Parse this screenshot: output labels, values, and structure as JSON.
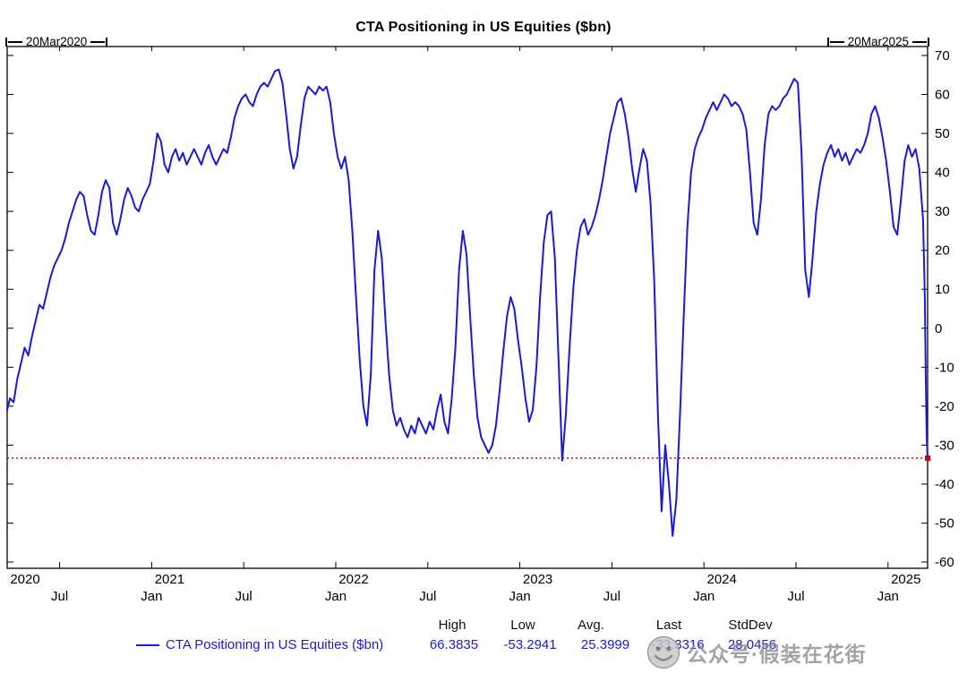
{
  "title": "CTA Positioning in US Equities ($bn)",
  "range": {
    "start": "20Mar2020",
    "end": "20Mar2025"
  },
  "legend_label": "CTA Positioning in US Equities ($bn)",
  "stats": {
    "high_label": "High",
    "low_label": "Low",
    "avg_label": "Avg.",
    "last_label": "Last",
    "stddev_label": "StdDev",
    "high": "66.3835",
    "low": "-53.2941",
    "avg": "25.3999",
    "last": "-33.3316",
    "stddev": "28.0456"
  },
  "watermark": {
    "text": "公众号·假装在花街"
  },
  "colors": {
    "series": "#1b1bd3",
    "last_line": "#cc0000",
    "value_text": "#1b1bd3",
    "axis_text": "#000000",
    "watermark": "#8f8f8f"
  },
  "chart_data": {
    "type": "line",
    "title": "CTA Positioning in US Equities ($bn)",
    "xlabel": "",
    "ylabel": "$bn",
    "grid": false,
    "legend_position": "bottom",
    "x_range": [
      2020.215,
      2025.215
    ],
    "ylim": [
      -60,
      70
    ],
    "y_ticks": [
      70,
      60,
      50,
      40,
      30,
      20,
      10,
      0,
      -10,
      -20,
      -30,
      -40,
      -50,
      -60
    ],
    "x_year_labels": [
      {
        "label": "2020",
        "year": 2020.215
      },
      {
        "label": "2021",
        "year": 2021.0
      },
      {
        "label": "2022",
        "year": 2022.0
      },
      {
        "label": "2023",
        "year": 2023.0
      },
      {
        "label": "2024",
        "year": 2024.0
      },
      {
        "label": "2025",
        "year": 2025.0
      }
    ],
    "x_minor_labels": [
      {
        "label": "Jul",
        "year": 2020.5
      },
      {
        "label": "Jan",
        "year": 2021.0
      },
      {
        "label": "Jul",
        "year": 2021.5
      },
      {
        "label": "Jan",
        "year": 2022.0
      },
      {
        "label": "Jul",
        "year": 2022.5
      },
      {
        "label": "Jan",
        "year": 2023.0
      },
      {
        "label": "Jul",
        "year": 2023.5
      },
      {
        "label": "Jan",
        "year": 2024.0
      },
      {
        "label": "Jul",
        "year": 2024.5
      },
      {
        "label": "Jan",
        "year": 2025.0
      }
    ],
    "last_line_value": -33.3316,
    "stats": {
      "high": 66.3835,
      "low": -53.2941,
      "avg": 25.3999,
      "last": -33.3316,
      "stddev": 28.0456
    },
    "series": [
      {
        "name": "CTA Positioning in US Equities ($bn)",
        "color": "#1b1bd3",
        "points": [
          [
            2020.215,
            -21
          ],
          [
            2020.23,
            -18
          ],
          [
            2020.25,
            -19
          ],
          [
            2020.27,
            -13
          ],
          [
            2020.29,
            -9
          ],
          [
            2020.31,
            -5
          ],
          [
            2020.33,
            -7
          ],
          [
            2020.35,
            -2
          ],
          [
            2020.37,
            2
          ],
          [
            2020.39,
            6
          ],
          [
            2020.41,
            5
          ],
          [
            2020.43,
            9
          ],
          [
            2020.45,
            13
          ],
          [
            2020.47,
            16
          ],
          [
            2020.49,
            18
          ],
          [
            2020.51,
            20
          ],
          [
            2020.53,
            23
          ],
          [
            2020.55,
            27
          ],
          [
            2020.57,
            30
          ],
          [
            2020.59,
            33
          ],
          [
            2020.61,
            35
          ],
          [
            2020.63,
            34
          ],
          [
            2020.65,
            29
          ],
          [
            2020.67,
            25
          ],
          [
            2020.69,
            24
          ],
          [
            2020.71,
            29
          ],
          [
            2020.73,
            35
          ],
          [
            2020.75,
            38
          ],
          [
            2020.77,
            36
          ],
          [
            2020.79,
            27
          ],
          [
            2020.81,
            24
          ],
          [
            2020.83,
            28
          ],
          [
            2020.85,
            33
          ],
          [
            2020.87,
            36
          ],
          [
            2020.89,
            34
          ],
          [
            2020.91,
            31
          ],
          [
            2020.93,
            30
          ],
          [
            2020.95,
            33
          ],
          [
            2020.97,
            35
          ],
          [
            2020.99,
            37
          ],
          [
            2021.01,
            43
          ],
          [
            2021.03,
            50
          ],
          [
            2021.05,
            48
          ],
          [
            2021.07,
            42
          ],
          [
            2021.09,
            40
          ],
          [
            2021.11,
            44
          ],
          [
            2021.13,
            46
          ],
          [
            2021.15,
            43
          ],
          [
            2021.17,
            45
          ],
          [
            2021.19,
            42
          ],
          [
            2021.21,
            44
          ],
          [
            2021.23,
            46
          ],
          [
            2021.25,
            44
          ],
          [
            2021.27,
            42
          ],
          [
            2021.29,
            45
          ],
          [
            2021.31,
            47
          ],
          [
            2021.33,
            44
          ],
          [
            2021.35,
            42
          ],
          [
            2021.37,
            44
          ],
          [
            2021.39,
            46
          ],
          [
            2021.41,
            45
          ],
          [
            2021.43,
            49
          ],
          [
            2021.45,
            54
          ],
          [
            2021.47,
            57
          ],
          [
            2021.49,
            59
          ],
          [
            2021.51,
            60
          ],
          [
            2021.53,
            58
          ],
          [
            2021.55,
            57
          ],
          [
            2021.57,
            60
          ],
          [
            2021.59,
            62
          ],
          [
            2021.61,
            63
          ],
          [
            2021.63,
            62
          ],
          [
            2021.65,
            64
          ],
          [
            2021.67,
            66
          ],
          [
            2021.69,
            66.4
          ],
          [
            2021.71,
            63
          ],
          [
            2021.73,
            55
          ],
          [
            2021.75,
            46
          ],
          [
            2021.77,
            41
          ],
          [
            2021.79,
            44
          ],
          [
            2021.81,
            52
          ],
          [
            2021.83,
            59
          ],
          [
            2021.85,
            62
          ],
          [
            2021.87,
            61
          ],
          [
            2021.89,
            60
          ],
          [
            2021.91,
            62
          ],
          [
            2021.93,
            61
          ],
          [
            2021.95,
            62
          ],
          [
            2021.97,
            58
          ],
          [
            2021.99,
            50
          ],
          [
            2022.01,
            44
          ],
          [
            2022.03,
            41
          ],
          [
            2022.05,
            44
          ],
          [
            2022.07,
            38
          ],
          [
            2022.09,
            25
          ],
          [
            2022.11,
            8
          ],
          [
            2022.13,
            -8
          ],
          [
            2022.15,
            -20
          ],
          [
            2022.17,
            -25
          ],
          [
            2022.19,
            -12
          ],
          [
            2022.21,
            15
          ],
          [
            2022.23,
            25
          ],
          [
            2022.25,
            18
          ],
          [
            2022.27,
            2
          ],
          [
            2022.29,
            -12
          ],
          [
            2022.31,
            -21
          ],
          [
            2022.33,
            -25
          ],
          [
            2022.35,
            -23
          ],
          [
            2022.37,
            -26
          ],
          [
            2022.39,
            -28
          ],
          [
            2022.41,
            -25
          ],
          [
            2022.43,
            -27
          ],
          [
            2022.45,
            -23
          ],
          [
            2022.47,
            -25
          ],
          [
            2022.49,
            -27
          ],
          [
            2022.51,
            -24
          ],
          [
            2022.53,
            -26
          ],
          [
            2022.55,
            -21
          ],
          [
            2022.57,
            -17
          ],
          [
            2022.59,
            -24
          ],
          [
            2022.61,
            -27
          ],
          [
            2022.63,
            -18
          ],
          [
            2022.65,
            -5
          ],
          [
            2022.67,
            15
          ],
          [
            2022.69,
            25
          ],
          [
            2022.71,
            19
          ],
          [
            2022.73,
            3
          ],
          [
            2022.75,
            -12
          ],
          [
            2022.77,
            -23
          ],
          [
            2022.79,
            -28
          ],
          [
            2022.81,
            -30
          ],
          [
            2022.83,
            -32
          ],
          [
            2022.85,
            -30
          ],
          [
            2022.87,
            -25
          ],
          [
            2022.89,
            -16
          ],
          [
            2022.91,
            -6
          ],
          [
            2022.93,
            3
          ],
          [
            2022.95,
            8
          ],
          [
            2022.97,
            5
          ],
          [
            2022.99,
            -3
          ],
          [
            2023.01,
            -10
          ],
          [
            2023.03,
            -18
          ],
          [
            2023.05,
            -24
          ],
          [
            2023.07,
            -21
          ],
          [
            2023.09,
            -10
          ],
          [
            2023.11,
            8
          ],
          [
            2023.13,
            22
          ],
          [
            2023.15,
            29
          ],
          [
            2023.17,
            30
          ],
          [
            2023.19,
            18
          ],
          [
            2023.21,
            -8
          ],
          [
            2023.23,
            -34
          ],
          [
            2023.25,
            -22
          ],
          [
            2023.27,
            -5
          ],
          [
            2023.29,
            10
          ],
          [
            2023.31,
            20
          ],
          [
            2023.33,
            26
          ],
          [
            2023.35,
            28
          ],
          [
            2023.37,
            24
          ],
          [
            2023.39,
            26
          ],
          [
            2023.41,
            29
          ],
          [
            2023.43,
            33
          ],
          [
            2023.45,
            38
          ],
          [
            2023.47,
            44
          ],
          [
            2023.49,
            50
          ],
          [
            2023.51,
            54
          ],
          [
            2023.53,
            58
          ],
          [
            2023.55,
            59
          ],
          [
            2023.57,
            55
          ],
          [
            2023.59,
            49
          ],
          [
            2023.61,
            41
          ],
          [
            2023.63,
            35
          ],
          [
            2023.65,
            41
          ],
          [
            2023.67,
            46
          ],
          [
            2023.69,
            43
          ],
          [
            2023.71,
            32
          ],
          [
            2023.73,
            12
          ],
          [
            2023.75,
            -22
          ],
          [
            2023.77,
            -47
          ],
          [
            2023.79,
            -30
          ],
          [
            2023.81,
            -40
          ],
          [
            2023.83,
            -53.29
          ],
          [
            2023.85,
            -44
          ],
          [
            2023.87,
            -22
          ],
          [
            2023.89,
            3
          ],
          [
            2023.91,
            26
          ],
          [
            2023.93,
            40
          ],
          [
            2023.95,
            46
          ],
          [
            2023.97,
            49
          ],
          [
            2023.99,
            51
          ],
          [
            2024.01,
            54
          ],
          [
            2024.03,
            56
          ],
          [
            2024.05,
            58
          ],
          [
            2024.07,
            56
          ],
          [
            2024.09,
            58
          ],
          [
            2024.11,
            60
          ],
          [
            2024.13,
            59
          ],
          [
            2024.15,
            57
          ],
          [
            2024.17,
            58
          ],
          [
            2024.19,
            57
          ],
          [
            2024.21,
            55
          ],
          [
            2024.23,
            51
          ],
          [
            2024.25,
            40
          ],
          [
            2024.27,
            27
          ],
          [
            2024.29,
            24
          ],
          [
            2024.31,
            33
          ],
          [
            2024.33,
            47
          ],
          [
            2024.35,
            55
          ],
          [
            2024.37,
            57
          ],
          [
            2024.39,
            56
          ],
          [
            2024.41,
            57
          ],
          [
            2024.43,
            59
          ],
          [
            2024.45,
            60
          ],
          [
            2024.47,
            62
          ],
          [
            2024.49,
            64
          ],
          [
            2024.51,
            63
          ],
          [
            2024.53,
            45
          ],
          [
            2024.55,
            15
          ],
          [
            2024.57,
            8
          ],
          [
            2024.59,
            18
          ],
          [
            2024.61,
            30
          ],
          [
            2024.63,
            37
          ],
          [
            2024.65,
            42
          ],
          [
            2024.67,
            45
          ],
          [
            2024.69,
            47
          ],
          [
            2024.71,
            44
          ],
          [
            2024.73,
            46
          ],
          [
            2024.75,
            43
          ],
          [
            2024.77,
            45
          ],
          [
            2024.79,
            42
          ],
          [
            2024.81,
            44
          ],
          [
            2024.83,
            46
          ],
          [
            2024.85,
            45
          ],
          [
            2024.87,
            47
          ],
          [
            2024.89,
            50
          ],
          [
            2024.91,
            55
          ],
          [
            2024.93,
            57
          ],
          [
            2024.95,
            54
          ],
          [
            2024.97,
            49
          ],
          [
            2024.99,
            43
          ],
          [
            2025.01,
            35
          ],
          [
            2025.03,
            26
          ],
          [
            2025.05,
            24
          ],
          [
            2025.07,
            33
          ],
          [
            2025.09,
            43
          ],
          [
            2025.11,
            47
          ],
          [
            2025.13,
            44
          ],
          [
            2025.15,
            46
          ],
          [
            2025.17,
            41
          ],
          [
            2025.19,
            28
          ],
          [
            2025.2,
            8
          ],
          [
            2025.205,
            -12
          ],
          [
            2025.21,
            -28
          ],
          [
            2025.215,
            -33.33
          ]
        ]
      }
    ]
  }
}
